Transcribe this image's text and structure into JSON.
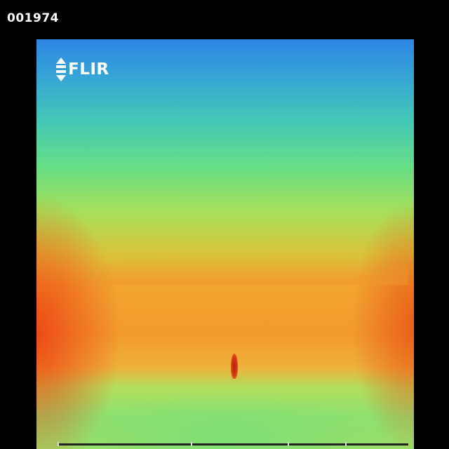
{
  "overlay": {
    "frame_number": "001974",
    "brand_text": "FLIR",
    "brand_logo_icon": "flir-logo-icon"
  },
  "colors": {
    "background": "#000000",
    "overlay_text": "#ffffff",
    "cold": "#2438e8",
    "hot": "#7a1c12"
  }
}
